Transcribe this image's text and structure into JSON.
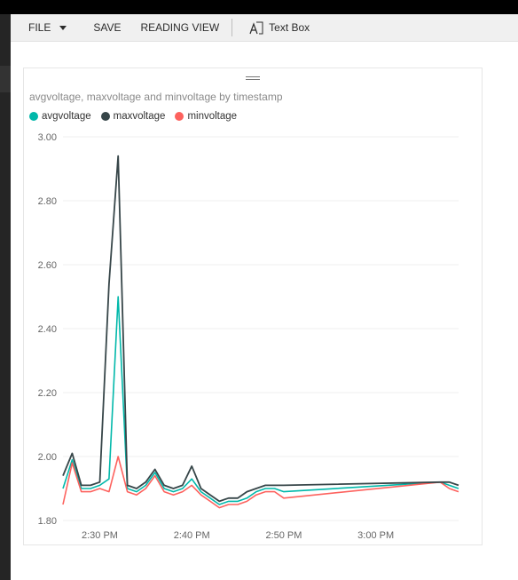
{
  "toolbar": {
    "file_label": "FILE",
    "save_label": "SAVE",
    "reading_view_label": "READING VIEW",
    "text_box_label": "Text Box",
    "text_box_icon": "text-box-icon",
    "caret_icon": "chevron-down-icon"
  },
  "colors": {
    "avgvoltage": "#01b8aa",
    "maxvoltage": "#374649",
    "minvoltage": "#fd625e",
    "gridline": "#efefef",
    "toolbar_bg": "#f0f0f0"
  },
  "chart_data": {
    "type": "line",
    "title": "avgvoltage, maxvoltage and minvoltage by timestamp",
    "xlabel": "",
    "ylabel": "",
    "ylim": [
      1.8,
      3.0
    ],
    "yticks": [
      "3.00",
      "2.80",
      "2.60",
      "2.40",
      "2.20",
      "2.00",
      "1.80"
    ],
    "xlim": [
      "2:26 PM",
      "3:09 PM"
    ],
    "xticks": [
      "2:30 PM",
      "2:40 PM",
      "2:50 PM",
      "3:00 PM"
    ],
    "grid": true,
    "legend": "top-left",
    "legend_labels": [
      "avgvoltage",
      "maxvoltage",
      "minvoltage"
    ],
    "x": [
      "2:26 PM",
      "2:27 PM",
      "2:28 PM",
      "2:29 PM",
      "2:30 PM",
      "2:31 PM",
      "2:32 PM",
      "2:33 PM",
      "2:34 PM",
      "2:35 PM",
      "2:36 PM",
      "2:37 PM",
      "2:38 PM",
      "2:39 PM",
      "2:40 PM",
      "2:41 PM",
      "2:42 PM",
      "2:43 PM",
      "2:44 PM",
      "2:45 PM",
      "2:46 PM",
      "2:47 PM",
      "2:48 PM",
      "2:49 PM",
      "2:50 PM",
      "3:07 PM",
      "3:08 PM",
      "3:09 PM"
    ],
    "series": [
      {
        "name": "avgvoltage",
        "values": [
          1.9,
          1.99,
          1.9,
          1.9,
          1.91,
          1.93,
          2.5,
          1.9,
          1.89,
          1.91,
          1.95,
          1.9,
          1.89,
          1.9,
          1.93,
          1.89,
          1.87,
          1.85,
          1.86,
          1.86,
          1.87,
          1.89,
          1.9,
          1.9,
          1.89,
          1.92,
          1.91,
          1.9
        ]
      },
      {
        "name": "maxvoltage",
        "values": [
          1.94,
          2.01,
          1.91,
          1.91,
          1.92,
          2.54,
          2.94,
          1.91,
          1.9,
          1.92,
          1.96,
          1.91,
          1.9,
          1.91,
          1.97,
          1.9,
          1.88,
          1.86,
          1.87,
          1.87,
          1.89,
          1.9,
          1.91,
          1.91,
          1.91,
          1.92,
          1.92,
          1.91
        ]
      },
      {
        "name": "minvoltage",
        "values": [
          1.85,
          1.98,
          1.89,
          1.89,
          1.9,
          1.89,
          2.0,
          1.89,
          1.88,
          1.9,
          1.94,
          1.89,
          1.88,
          1.89,
          1.91,
          1.88,
          1.86,
          1.84,
          1.85,
          1.85,
          1.86,
          1.88,
          1.89,
          1.89,
          1.87,
          1.92,
          1.9,
          1.89
        ]
      }
    ]
  }
}
